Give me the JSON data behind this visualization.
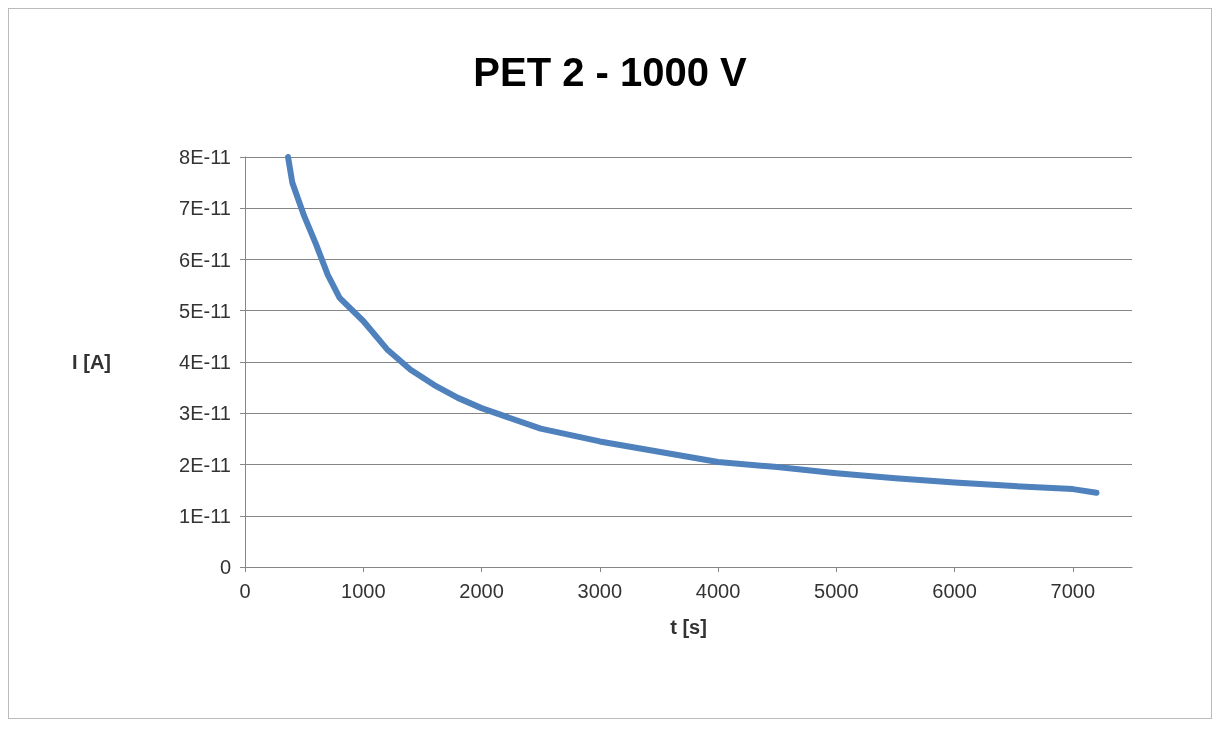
{
  "chart_data": {
    "type": "line",
    "title": "PET 2 - 1000 V",
    "xlabel": "t [s]",
    "ylabel": "I [A]",
    "xlim": [
      0,
      7500
    ],
    "xticks": [
      0,
      1000,
      2000,
      3000,
      4000,
      5000,
      6000,
      7000
    ],
    "ylim": [
      0,
      8e-11
    ],
    "yticks": [
      {
        "value": 0,
        "label": "0"
      },
      {
        "value": 1e-11,
        "label": "1E-11"
      },
      {
        "value": 2e-11,
        "label": "2E-11"
      },
      {
        "value": 3e-11,
        "label": "3E-11"
      },
      {
        "value": 4e-11,
        "label": "4E-11"
      },
      {
        "value": 5e-11,
        "label": "5E-11"
      },
      {
        "value": 6e-11,
        "label": "6E-11"
      },
      {
        "value": 7e-11,
        "label": "7E-11"
      },
      {
        "value": 8e-11,
        "label": "8E-11"
      }
    ],
    "grid": "y",
    "marker": "none",
    "line_style": "solid",
    "series": [
      {
        "color": "#4f81bd",
        "x": [
          364,
          400,
          500,
          600,
          700,
          800,
          1000,
          1200,
          1400,
          1600,
          1800,
          2000,
          2500,
          3000,
          3500,
          4000,
          4500,
          5000,
          5500,
          6000,
          6500,
          7000,
          7200
        ],
        "values": [
          8e-11,
          7.5e-11,
          6.85e-11,
          6.3e-11,
          5.7e-11,
          5.25e-11,
          4.8e-11,
          4.25e-11,
          3.85e-11,
          3.55e-11,
          3.3e-11,
          3.1e-11,
          2.7e-11,
          2.45e-11,
          2.25e-11,
          2.05e-11,
          1.95e-11,
          1.83e-11,
          1.73e-11,
          1.65e-11,
          1.58e-11,
          1.52e-11,
          1.45e-11
        ]
      }
    ]
  }
}
